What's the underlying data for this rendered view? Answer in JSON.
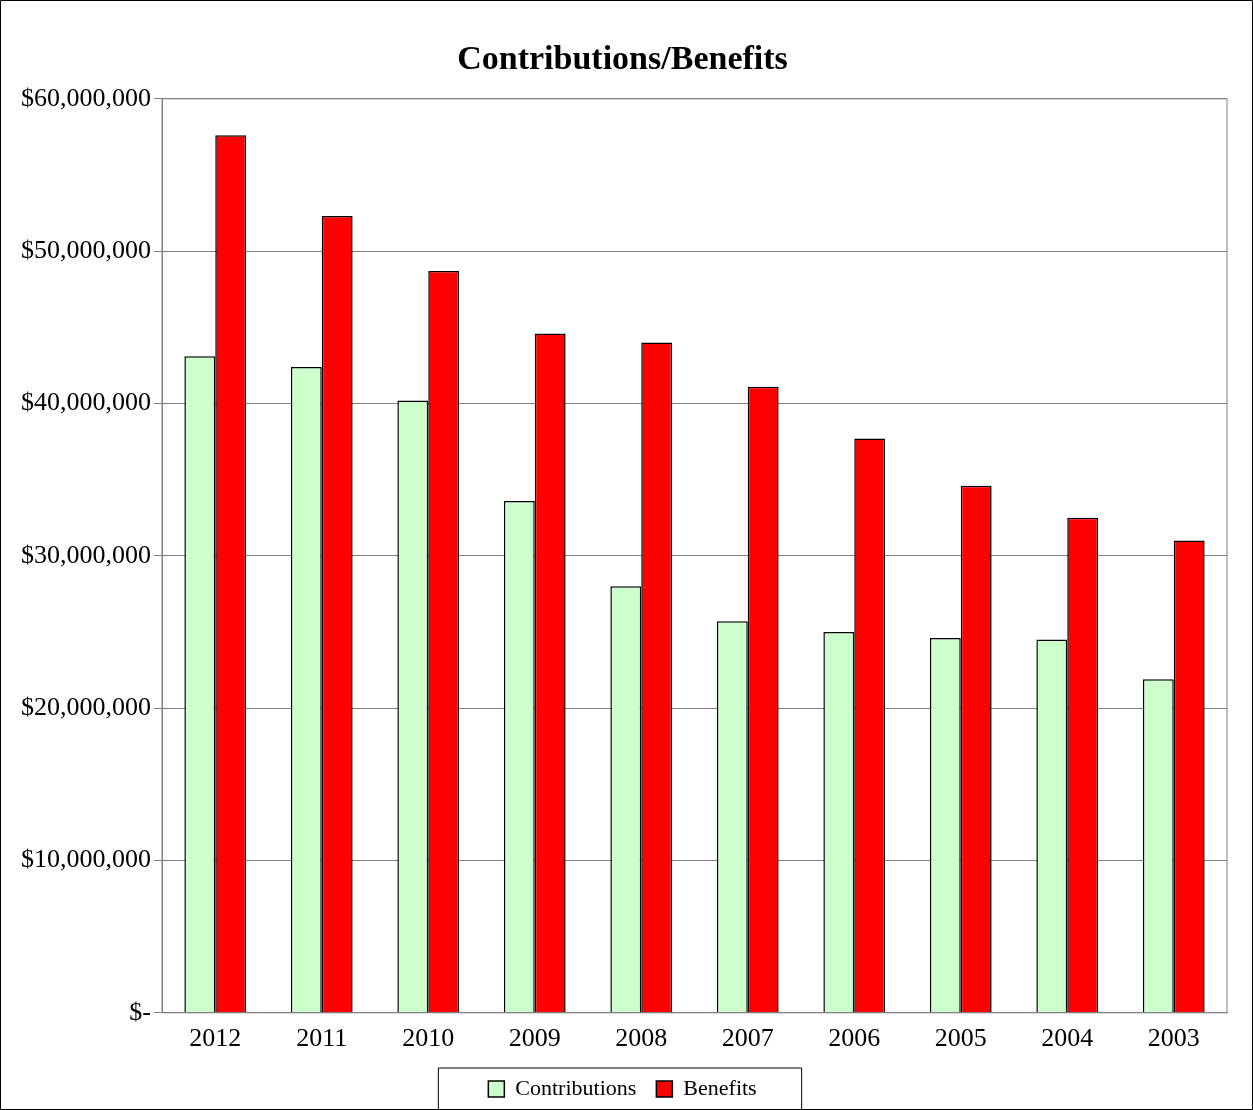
{
  "chart_data": {
    "type": "bar",
    "title": "Contributions/Benefits",
    "categories": [
      "2012",
      "2011",
      "2010",
      "2009",
      "2008",
      "2007",
      "2006",
      "2005",
      "2004",
      "2003"
    ],
    "series": [
      {
        "name": "Contributions",
        "color": "#ccffcc",
        "values": [
          43100000,
          42400000,
          40200000,
          33600000,
          28000000,
          25700000,
          25000000,
          24600000,
          24500000,
          21900000
        ]
      },
      {
        "name": "Benefits",
        "color": "#ff0000",
        "values": [
          57600000,
          52300000,
          48700000,
          44600000,
          44000000,
          41100000,
          37700000,
          34600000,
          32500000,
          31000000
        ]
      }
    ],
    "ylim": [
      0,
      60000000
    ],
    "yticks": [
      {
        "value": 0,
        "label": "$-"
      },
      {
        "value": 10000000,
        "label": "$10,000,000"
      },
      {
        "value": 20000000,
        "label": "$20,000,000"
      },
      {
        "value": 30000000,
        "label": "$30,000,000"
      },
      {
        "value": 40000000,
        "label": "$40,000,000"
      },
      {
        "value": 50000000,
        "label": "$50,000,000"
      },
      {
        "value": 60000000,
        "label": "$60,000,000"
      }
    ],
    "grid": "y",
    "legend": "bottom"
  }
}
